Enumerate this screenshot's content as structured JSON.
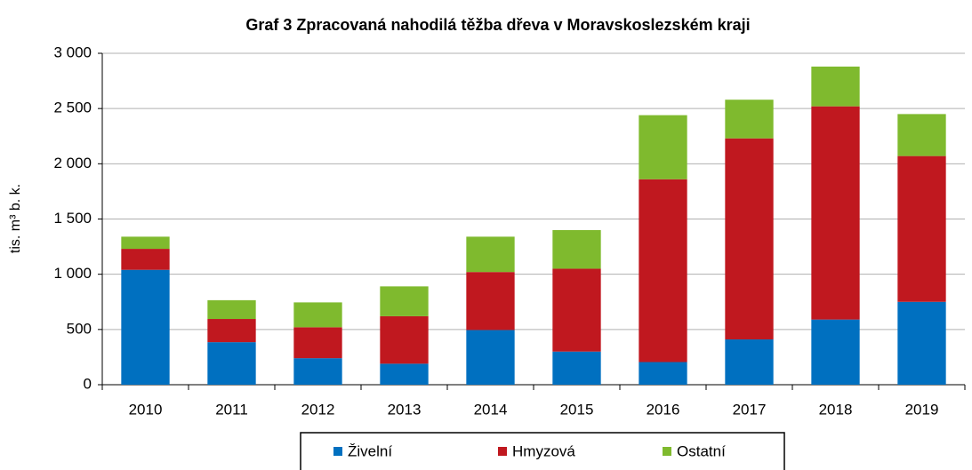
{
  "chart_data": {
    "type": "stacked_bar",
    "title": "Graf 3 Zpracovaná  nahodilá těžba dřeva v Moravskoslezském  kraji",
    "y_label": "tis. m³ b. k.",
    "categories": [
      "2010",
      "2011",
      "2012",
      "2013",
      "2014",
      "2015",
      "2016",
      "2017",
      "2018",
      "2019"
    ],
    "series": [
      {
        "name": "Živelní",
        "color": "#0070c0",
        "values": [
          1040,
          385,
          240,
          190,
          495,
          300,
          205,
          410,
          590,
          750
        ]
      },
      {
        "name": "Hmyzová",
        "color": "#c0181f",
        "values": [
          190,
          210,
          280,
          430,
          525,
          750,
          1655,
          1820,
          1930,
          1320
        ]
      },
      {
        "name": "Ostatní",
        "color": "#7fba2e",
        "values": [
          110,
          170,
          225,
          270,
          320,
          350,
          580,
          350,
          360,
          380
        ]
      }
    ],
    "ylim": [
      0,
      3000
    ],
    "yticks": [
      0,
      500,
      {
        "value": 1000,
        "label": "1 000"
      },
      {
        "value": 1500,
        "label": "1 500"
      },
      {
        "value": 2000,
        "label": "2 000"
      },
      {
        "value": 2500,
        "label": "2 500"
      },
      {
        "value": 3000,
        "label": "3 000"
      }
    ],
    "grid": true,
    "legend": "bottom"
  }
}
